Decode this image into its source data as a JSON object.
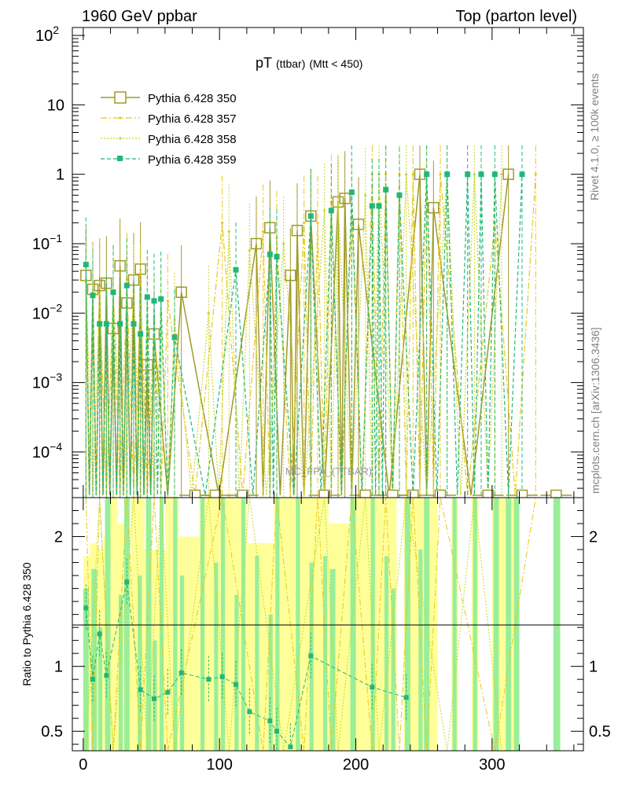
{
  "header": {
    "left": "1960 GeV ppbar",
    "right": "Top (parton level)"
  },
  "side_labels": {
    "rivet": "Rivet 4.1.0, ≥ 100k events",
    "mcplots": "mcplots.cern.ch [arXiv:1306.3436]"
  },
  "watermark": "MC_FPA_(TTBAR)",
  "chart_data": {
    "type": "line",
    "title_main": "pT",
    "title_sub1": "(ttbar)",
    "title_sub2": "(Mtt < 450)",
    "xlim": [
      -8,
      367
    ],
    "ylim_main": [
      2.2e-05,
      130
    ],
    "yscale_main": "log",
    "ylim_ratio": [
      0.35,
      2.3
    ],
    "ratio_ylabel": "Ratio to Pythia 6.428 350",
    "x_ticks": [
      0,
      100,
      200,
      300
    ],
    "y_ticks_main": [
      {
        "v": 0.0001,
        "base": "10",
        "exp": "−4"
      },
      {
        "v": 0.001,
        "base": "10",
        "exp": "−3"
      },
      {
        "v": 0.01,
        "base": "10",
        "exp": "−2"
      },
      {
        "v": 0.1,
        "base": "10",
        "exp": "−1"
      },
      {
        "v": 1,
        "base": "1",
        "exp": ""
      },
      {
        "v": 10,
        "base": "10",
        "exp": ""
      },
      {
        "v": 100,
        "base": "10",
        "exp": "2"
      }
    ],
    "y_ticks_ratio": [
      {
        "v": 0.5,
        "label": "0.5"
      },
      {
        "v": 1,
        "label": "1"
      },
      {
        "v": 2,
        "label": "2"
      }
    ],
    "legend": [
      {
        "label": "Pythia 6.428 350"
      },
      {
        "label": "Pythia 6.428 357"
      },
      {
        "label": "Pythia 6.428 358"
      },
      {
        "label": "Pythia 6.428 359"
      }
    ],
    "series": [
      {
        "name": "Pythia 6.428 350",
        "color": "#a09a28",
        "dash": "",
        "marker": "open-square",
        "x": [
          2,
          7,
          12,
          17,
          22,
          27,
          32,
          37,
          42,
          47,
          52,
          72,
          127,
          137,
          152,
          157,
          167,
          187,
          192,
          202,
          247,
          257,
          312
        ],
        "y": [
          0.035,
          0.022,
          0.025,
          0.027,
          0.006,
          0.048,
          0.014,
          0.03,
          0.043,
          0.0018,
          0.005,
          0.02,
          0.1,
          0.17,
          0.035,
          0.155,
          0.25,
          0.4,
          0.45,
          0.19,
          1.0,
          0.33,
          1.0
        ]
      },
      {
        "name": "Pythia 6.428 357",
        "color": "#e8c818",
        "dash": "8,3,2,3",
        "marker": "small-dot",
        "x": [
          2,
          7,
          12,
          22,
          32,
          42,
          52,
          62,
          102,
          132,
          142,
          162,
          172,
          182,
          197,
          212,
          222,
          232,
          242,
          252,
          262,
          302,
          332
        ],
        "y": [
          0.03,
          0.02,
          0.025,
          0.02,
          0.03,
          0.02,
          0.008,
          0.015,
          0.2,
          0.15,
          0.12,
          0.2,
          0.2,
          0.4,
          0.3,
          1.0,
          1.0,
          1.0,
          1.0,
          1.0,
          1.0,
          0.2,
          1.0
        ]
      },
      {
        "name": "Pythia 6.428 358",
        "color": "#c8d820",
        "dash": "2,2",
        "marker": "small-dot",
        "x": [
          2,
          12,
          22,
          37,
          47,
          57,
          67,
          92,
          107,
          122,
          147,
          177,
          187,
          207,
          217,
          237,
          267,
          287,
          307
        ],
        "y": [
          0.028,
          0.018,
          0.02,
          0.02,
          0.012,
          0.01,
          0.008,
          0.01,
          0.15,
          0.08,
          0.1,
          0.3,
          0.4,
          0.5,
          1.0,
          1.0,
          1.0,
          1.0,
          1.0
        ]
      },
      {
        "name": "Pythia 6.428 359",
        "color": "#20b878",
        "dash": "5,3",
        "marker": "filled-square",
        "x": [
          2,
          7,
          12,
          17,
          22,
          27,
          32,
          37,
          42,
          47,
          52,
          57,
          67,
          112,
          137,
          142,
          167,
          182,
          197,
          212,
          217,
          222,
          232,
          252,
          267,
          282,
          292,
          302,
          322
        ],
        "y": [
          0.05,
          0.018,
          0.007,
          0.007,
          0.02,
          0.007,
          0.025,
          0.007,
          0.005,
          0.017,
          0.015,
          0.016,
          0.0045,
          0.042,
          0.07,
          0.065,
          0.25,
          0.3,
          0.55,
          0.35,
          0.35,
          0.6,
          0.5,
          1.0,
          1.0,
          1.0,
          1.0,
          1.0,
          1.0
        ]
      }
    ],
    "ratio_points_359": {
      "x": [
        2,
        7,
        12,
        17,
        32,
        42,
        52,
        62,
        72,
        92,
        102,
        112,
        122,
        137,
        142,
        152,
        167,
        212,
        237
      ],
      "y": [
        1.45,
        0.9,
        1.25,
        0.93,
        1.65,
        0.82,
        0.75,
        0.8,
        0.95,
        0.9,
        0.92,
        0.86,
        0.65,
        0.58,
        0.5,
        0.38,
        1.08,
        0.84,
        0.76
      ]
    },
    "ratio_bands": {
      "yellow": [
        {
          "x0": 0,
          "x1": 5,
          "lo": 0.35,
          "hi": 1.85
        },
        {
          "x0": 5,
          "x1": 10,
          "lo": 0.5,
          "hi": 1.95
        },
        {
          "x0": 10,
          "x1": 15,
          "lo": 0.35,
          "hi": 1.9
        },
        {
          "x0": 15,
          "x1": 20,
          "lo": 0.35,
          "hi": 2.0
        },
        {
          "x0": 20,
          "x1": 25,
          "lo": 0.35,
          "hi": 2.3
        },
        {
          "x0": 25,
          "x1": 30,
          "lo": 0.35,
          "hi": 2.1
        },
        {
          "x0": 30,
          "x1": 35,
          "lo": 0.35,
          "hi": 1.8
        },
        {
          "x0": 35,
          "x1": 45,
          "lo": 0.35,
          "hi": 2.3
        },
        {
          "x0": 45,
          "x1": 60,
          "lo": 0.35,
          "hi": 1.9
        },
        {
          "x0": 60,
          "x1": 70,
          "lo": 0.35,
          "hi": 2.3
        },
        {
          "x0": 70,
          "x1": 85,
          "lo": 0.35,
          "hi": 2.0
        },
        {
          "x0": 85,
          "x1": 120,
          "lo": 0.35,
          "hi": 2.3
        },
        {
          "x0": 120,
          "x1": 140,
          "lo": 0.35,
          "hi": 1.95
        },
        {
          "x0": 140,
          "x1": 180,
          "lo": 0.35,
          "hi": 2.3
        },
        {
          "x0": 180,
          "x1": 200,
          "lo": 0.35,
          "hi": 2.1
        },
        {
          "x0": 200,
          "x1": 230,
          "lo": 0.35,
          "hi": 2.3
        },
        {
          "x0": 235,
          "x1": 260,
          "lo": 0.35,
          "hi": 2.3
        },
        {
          "x0": 270,
          "x1": 275,
          "lo": 0.35,
          "hi": 2.3
        },
        {
          "x0": 285,
          "x1": 290,
          "lo": 0.35,
          "hi": 2.3
        },
        {
          "x0": 300,
          "x1": 320,
          "lo": 0.35,
          "hi": 2.3
        },
        {
          "x0": 345,
          "x1": 350,
          "lo": 0.35,
          "hi": 2.3
        }
      ],
      "green": [
        {
          "x0": 0,
          "x1": 4,
          "lo": 0.35,
          "hi": 1.6
        },
        {
          "x0": 6,
          "x1": 10,
          "lo": 0.35,
          "hi": 1.75
        },
        {
          "x0": 11,
          "x1": 14,
          "lo": 0.35,
          "hi": 1.3
        },
        {
          "x0": 16,
          "x1": 20,
          "lo": 0.35,
          "hi": 2.3
        },
        {
          "x0": 26,
          "x1": 29,
          "lo": 0.35,
          "hi": 1.55
        },
        {
          "x0": 30,
          "x1": 34,
          "lo": 0.35,
          "hi": 2.3
        },
        {
          "x0": 40,
          "x1": 43,
          "lo": 0.35,
          "hi": 1.7
        },
        {
          "x0": 46,
          "x1": 50,
          "lo": 0.35,
          "hi": 2.3
        },
        {
          "x0": 51,
          "x1": 54,
          "lo": 0.35,
          "hi": 1.2
        },
        {
          "x0": 56,
          "x1": 59,
          "lo": 0.35,
          "hi": 2.3
        },
        {
          "x0": 66,
          "x1": 69,
          "lo": 0.35,
          "hi": 2.3
        },
        {
          "x0": 71,
          "x1": 74,
          "lo": 0.35,
          "hi": 1.7
        },
        {
          "x0": 86,
          "x1": 89,
          "lo": 0.35,
          "hi": 2.3
        },
        {
          "x0": 96,
          "x1": 99,
          "lo": 0.35,
          "hi": 1.8
        },
        {
          "x0": 101,
          "x1": 104,
          "lo": 0.35,
          "hi": 2.3
        },
        {
          "x0": 111,
          "x1": 114,
          "lo": 0.35,
          "hi": 1.55
        },
        {
          "x0": 116,
          "x1": 119,
          "lo": 0.35,
          "hi": 2.3
        },
        {
          "x0": 126,
          "x1": 129,
          "lo": 0.35,
          "hi": 1.85
        },
        {
          "x0": 136,
          "x1": 139,
          "lo": 0.35,
          "hi": 1.4
        },
        {
          "x0": 141,
          "x1": 144,
          "lo": 0.35,
          "hi": 2.3
        },
        {
          "x0": 156,
          "x1": 159,
          "lo": 0.35,
          "hi": 2.3
        },
        {
          "x0": 166,
          "x1": 169,
          "lo": 0.35,
          "hi": 1.8
        },
        {
          "x0": 176,
          "x1": 179,
          "lo": 0.35,
          "hi": 1.85
        },
        {
          "x0": 181,
          "x1": 185,
          "lo": 0.35,
          "hi": 1.75
        },
        {
          "x0": 196,
          "x1": 200,
          "lo": 0.35,
          "hi": 2.3
        },
        {
          "x0": 211,
          "x1": 214,
          "lo": 0.35,
          "hi": 2.3
        },
        {
          "x0": 221,
          "x1": 224,
          "lo": 0.35,
          "hi": 1.85
        },
        {
          "x0": 226,
          "x1": 229,
          "lo": 0.35,
          "hi": 1.6
        },
        {
          "x0": 236,
          "x1": 240,
          "lo": 0.35,
          "hi": 2.3
        },
        {
          "x0": 246,
          "x1": 249,
          "lo": 0.35,
          "hi": 1.9
        },
        {
          "x0": 250,
          "x1": 254,
          "lo": 0.35,
          "hi": 2.3
        },
        {
          "x0": 271,
          "x1": 274,
          "lo": 0.35,
          "hi": 2.3
        },
        {
          "x0": 286,
          "x1": 289,
          "lo": 0.35,
          "hi": 2.3
        },
        {
          "x0": 301,
          "x1": 305,
          "lo": 0.35,
          "hi": 2.3
        },
        {
          "x0": 310,
          "x1": 314,
          "lo": 0.35,
          "hi": 2.3
        },
        {
          "x0": 316,
          "x1": 320,
          "lo": 0.35,
          "hi": 2.3
        },
        {
          "x0": 345,
          "x1": 350,
          "lo": 0.35,
          "hi": 2.3
        }
      ]
    }
  }
}
